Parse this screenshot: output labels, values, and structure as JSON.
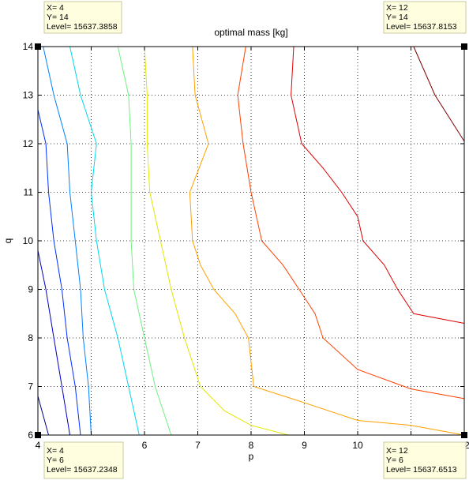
{
  "chart_data": {
    "type": "contour",
    "title": "optimal mass [kg]",
    "xlabel": "p",
    "ylabel": "q",
    "xlim": [
      4,
      12
    ],
    "ylim": [
      6,
      14
    ],
    "xticks": [
      4,
      5,
      6,
      7,
      8,
      9,
      10,
      11,
      12
    ],
    "yticks": [
      6,
      7,
      8,
      9,
      10,
      11,
      12,
      13,
      14
    ],
    "grid": true,
    "contours": [
      {
        "color": "#00007f",
        "points": [
          [
            4.0,
            6.8
          ],
          [
            4.2,
            6.0
          ]
        ]
      },
      {
        "color": "#0000c8",
        "points": [
          [
            4.0,
            9.8
          ],
          [
            4.15,
            9.0
          ],
          [
            4.3,
            8.0
          ],
          [
            4.45,
            7.0
          ],
          [
            4.6,
            6.0
          ]
        ]
      },
      {
        "color": "#0030ff",
        "points": [
          [
            4.0,
            12.7
          ],
          [
            4.15,
            12.0
          ],
          [
            4.2,
            11.0
          ],
          [
            4.3,
            10.0
          ],
          [
            4.45,
            9.0
          ],
          [
            4.55,
            8.0
          ],
          [
            4.7,
            7.0
          ],
          [
            4.8,
            6.0
          ]
        ]
      },
      {
        "color": "#0080ff",
        "points": [
          [
            4.1,
            14.0
          ],
          [
            4.3,
            13.0
          ],
          [
            4.55,
            12.0
          ],
          [
            4.6,
            11.0
          ],
          [
            4.7,
            10.0
          ],
          [
            4.8,
            9.0
          ],
          [
            4.85,
            8.0
          ],
          [
            4.95,
            7.0
          ],
          [
            5.0,
            6.0
          ]
        ]
      },
      {
        "color": "#00d8f0",
        "points": [
          [
            4.6,
            14.0
          ],
          [
            4.8,
            13.0
          ],
          [
            5.1,
            12.0
          ],
          [
            5.0,
            11.0
          ],
          [
            5.1,
            10.0
          ],
          [
            5.25,
            9.0
          ],
          [
            5.5,
            8.0
          ],
          [
            5.7,
            7.0
          ],
          [
            5.9,
            6.0
          ]
        ]
      },
      {
        "color": "#70f080",
        "points": [
          [
            5.5,
            14.0
          ],
          [
            5.7,
            13.0
          ],
          [
            5.75,
            12.0
          ],
          [
            5.75,
            11.0
          ],
          [
            5.75,
            10.0
          ],
          [
            5.8,
            9.0
          ],
          [
            6.0,
            8.0
          ],
          [
            6.2,
            7.0
          ],
          [
            6.5,
            6.0
          ]
        ]
      },
      {
        "color": "#e0e800",
        "points": [
          [
            6.0,
            14.0
          ],
          [
            6.05,
            13.0
          ],
          [
            6.05,
            12.0
          ],
          [
            6.1,
            11.0
          ],
          [
            6.3,
            10.0
          ],
          [
            6.5,
            9.0
          ],
          [
            6.75,
            8.0
          ],
          [
            7.05,
            7.0
          ],
          [
            7.5,
            6.5
          ],
          [
            8.0,
            6.2
          ],
          [
            8.7,
            6.0
          ]
        ]
      },
      {
        "color": "#ffa000",
        "points": [
          [
            6.9,
            14.0
          ],
          [
            6.95,
            13.0
          ],
          [
            7.2,
            12.0
          ],
          [
            6.85,
            11.0
          ],
          [
            6.9,
            10.0
          ],
          [
            7.05,
            9.5
          ],
          [
            7.3,
            9.0
          ],
          [
            7.7,
            8.5
          ],
          [
            7.95,
            8.0
          ],
          [
            8.05,
            7.0
          ],
          [
            8.9,
            6.7
          ],
          [
            10.0,
            6.3
          ],
          [
            11.0,
            6.2
          ],
          [
            12.0,
            6.0
          ]
        ]
      },
      {
        "color": "#ff4000",
        "points": [
          [
            7.9,
            14.0
          ],
          [
            7.75,
            13.0
          ],
          [
            7.85,
            12.0
          ],
          [
            8.0,
            11.0
          ],
          [
            8.1,
            10.5
          ],
          [
            8.2,
            10.0
          ],
          [
            8.6,
            9.5
          ],
          [
            8.9,
            9.0
          ],
          [
            9.2,
            8.5
          ],
          [
            9.35,
            8.0
          ],
          [
            10.0,
            7.35
          ],
          [
            11.0,
            6.95
          ],
          [
            12.0,
            6.75
          ]
        ]
      },
      {
        "color": "#e00000",
        "points": [
          [
            8.8,
            14.0
          ],
          [
            8.75,
            13.0
          ],
          [
            8.95,
            12.0
          ],
          [
            9.35,
            11.5
          ],
          [
            9.7,
            11.0
          ],
          [
            10.0,
            10.5
          ],
          [
            10.1,
            10.0
          ],
          [
            10.5,
            9.5
          ],
          [
            10.75,
            9.0
          ],
          [
            11.05,
            8.5
          ],
          [
            12.0,
            8.3
          ]
        ]
      },
      {
        "color": "#800000",
        "points": [
          [
            11.05,
            14.0
          ],
          [
            11.45,
            13.0
          ],
          [
            12.0,
            12.05
          ]
        ]
      }
    ],
    "datatips": [
      {
        "x_label": "X= 4",
        "y_label": "Y= 14",
        "level_label": "Level= 15637.3858"
      },
      {
        "x_label": "X= 12",
        "y_label": "Y= 14",
        "level_label": "Level= 15637.8153"
      },
      {
        "x_label": "X= 4",
        "y_label": "Y= 6",
        "level_label": "Level= 15637.2348"
      },
      {
        "x_label": "X= 12",
        "y_label": "Y= 6",
        "level_label": "Level= 15637.6513"
      }
    ]
  }
}
